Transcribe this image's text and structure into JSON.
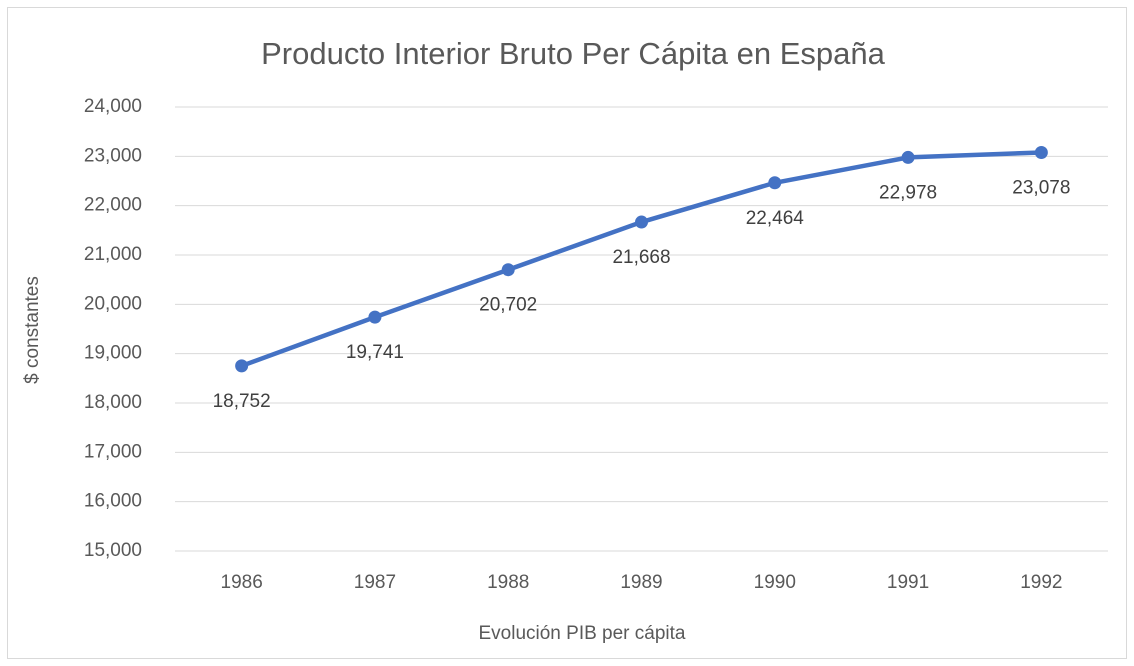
{
  "chart_data": {
    "type": "line",
    "title": "Producto Interior Bruto Per Cápita en España",
    "x_label": "Evolución PIB per cápita",
    "y_label": "$ constantes",
    "categories": [
      "1986",
      "1987",
      "1988",
      "1989",
      "1990",
      "1991",
      "1992"
    ],
    "values": [
      18752,
      19741,
      20702,
      21668,
      22464,
      22978,
      23078
    ],
    "value_labels": [
      "18,752",
      "19,741",
      "20,702",
      "21,668",
      "22,464",
      "22,978",
      "23,078"
    ],
    "color": "#4472c4",
    "ylim": [
      15000,
      24000
    ],
    "yticks": [
      {
        "value": 15000,
        "label": "15,000"
      },
      {
        "value": 16000,
        "label": "16,000"
      },
      {
        "value": 17000,
        "label": "17,000"
      },
      {
        "value": 18000,
        "label": "18,000"
      },
      {
        "value": 19000,
        "label": "19,000"
      },
      {
        "value": 20000,
        "label": "20,000"
      },
      {
        "value": 21000,
        "label": "21,000"
      },
      {
        "value": 22000,
        "label": "22,000"
      },
      {
        "value": 23000,
        "label": "23,000"
      },
      {
        "value": 24000,
        "label": "24,000"
      }
    ],
    "grid": true
  }
}
